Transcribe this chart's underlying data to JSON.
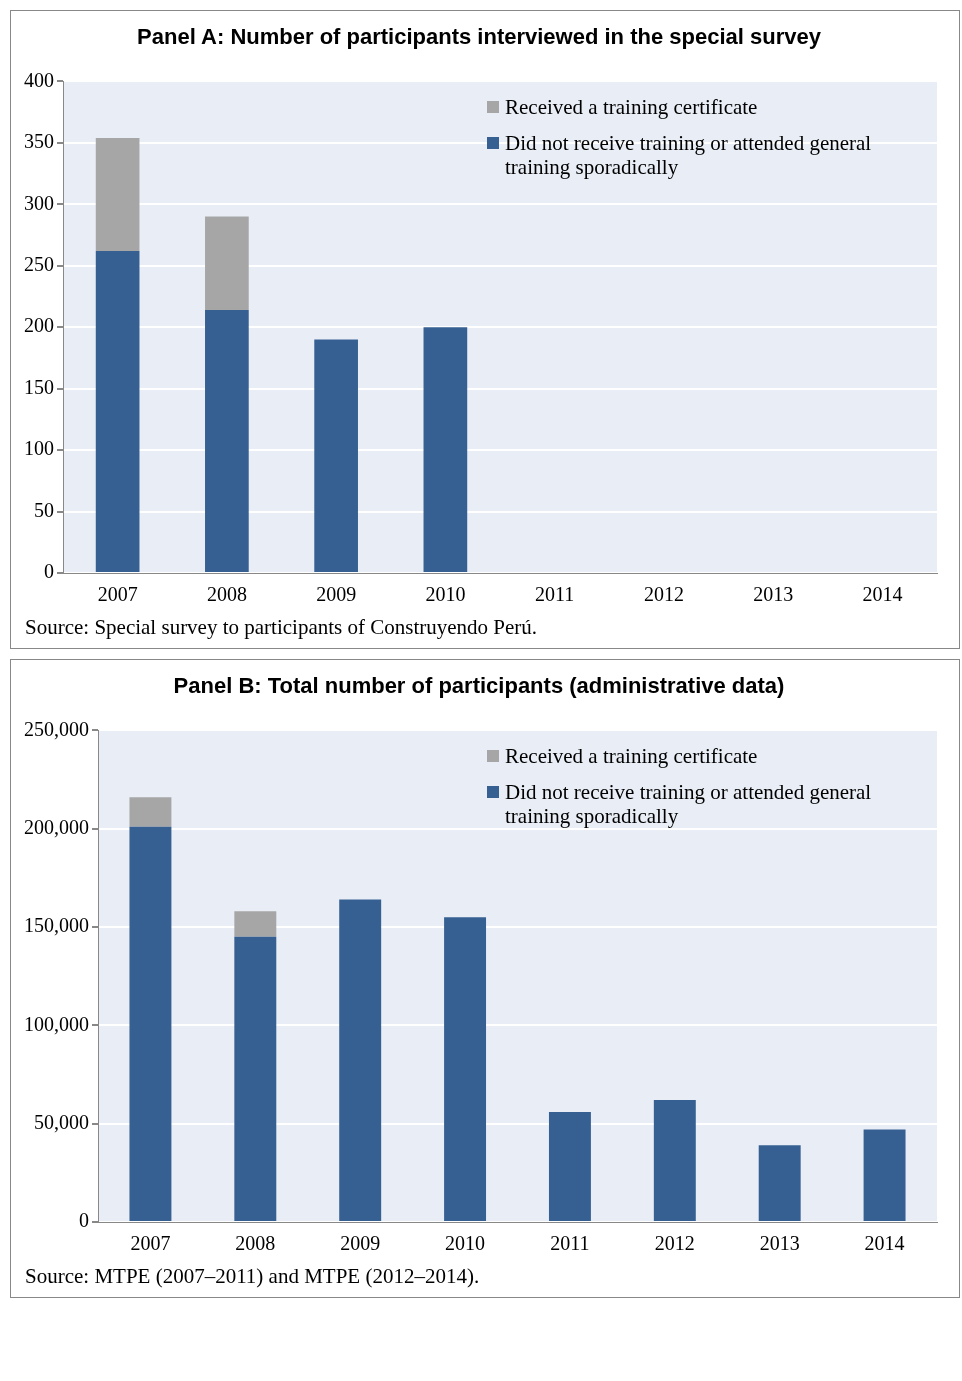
{
  "chart_data": [
    {
      "type": "bar",
      "title": "Panel A: Number of participants interviewed in the special survey",
      "categories": [
        "2007",
        "2008",
        "2009",
        "2010",
        "2011",
        "2012",
        "2013",
        "2014"
      ],
      "stacked": true,
      "series": [
        {
          "name": "Did not receive training or attended general training sporadically",
          "color": "#366092",
          "values": [
            262,
            214,
            190,
            200,
            null,
            null,
            null,
            null
          ]
        },
        {
          "name": "Received a training certificate",
          "color": "#a6a6a6",
          "values": [
            92,
            76,
            null,
            null,
            null,
            null,
            null,
            null
          ]
        }
      ],
      "ylim": [
        0,
        400
      ],
      "yticks": [
        0,
        50,
        100,
        150,
        200,
        250,
        300,
        350,
        400
      ],
      "grid": "y",
      "legend": "top right",
      "annotations": [
        "Source: Special survey to participants of Construyendo Perú."
      ]
    },
    {
      "type": "bar",
      "title": "Panel B: Total number of participants (administrative data)",
      "categories": [
        "2007",
        "2008",
        "2009",
        "2010",
        "2011",
        "2012",
        "2013",
        "2014"
      ],
      "stacked": true,
      "series": [
        {
          "name": "Did not receive training or attended general training sporadically",
          "color": "#366092",
          "values": [
            201000,
            145000,
            164000,
            155000,
            56000,
            62000,
            39000,
            47000
          ]
        },
        {
          "name": "Received a training certificate",
          "color": "#a6a6a6",
          "values": [
            15000,
            13000,
            null,
            null,
            null,
            null,
            null,
            null
          ]
        }
      ],
      "ylim": [
        0,
        250000
      ],
      "yticks": [
        {
          "value": 0,
          "label": "0"
        },
        {
          "value": 50000,
          "label": "50,000"
        },
        {
          "value": 100000,
          "label": "100,000"
        },
        {
          "value": 150000,
          "label": "150,000"
        },
        {
          "value": 200000,
          "label": "200,000"
        },
        {
          "value": 250000,
          "label": "250,000"
        }
      ],
      "grid": "y",
      "legend": "top right",
      "annotations": [
        "Source: MTPE (2007–2011) and MTPE (2012–2014)."
      ]
    }
  ]
}
